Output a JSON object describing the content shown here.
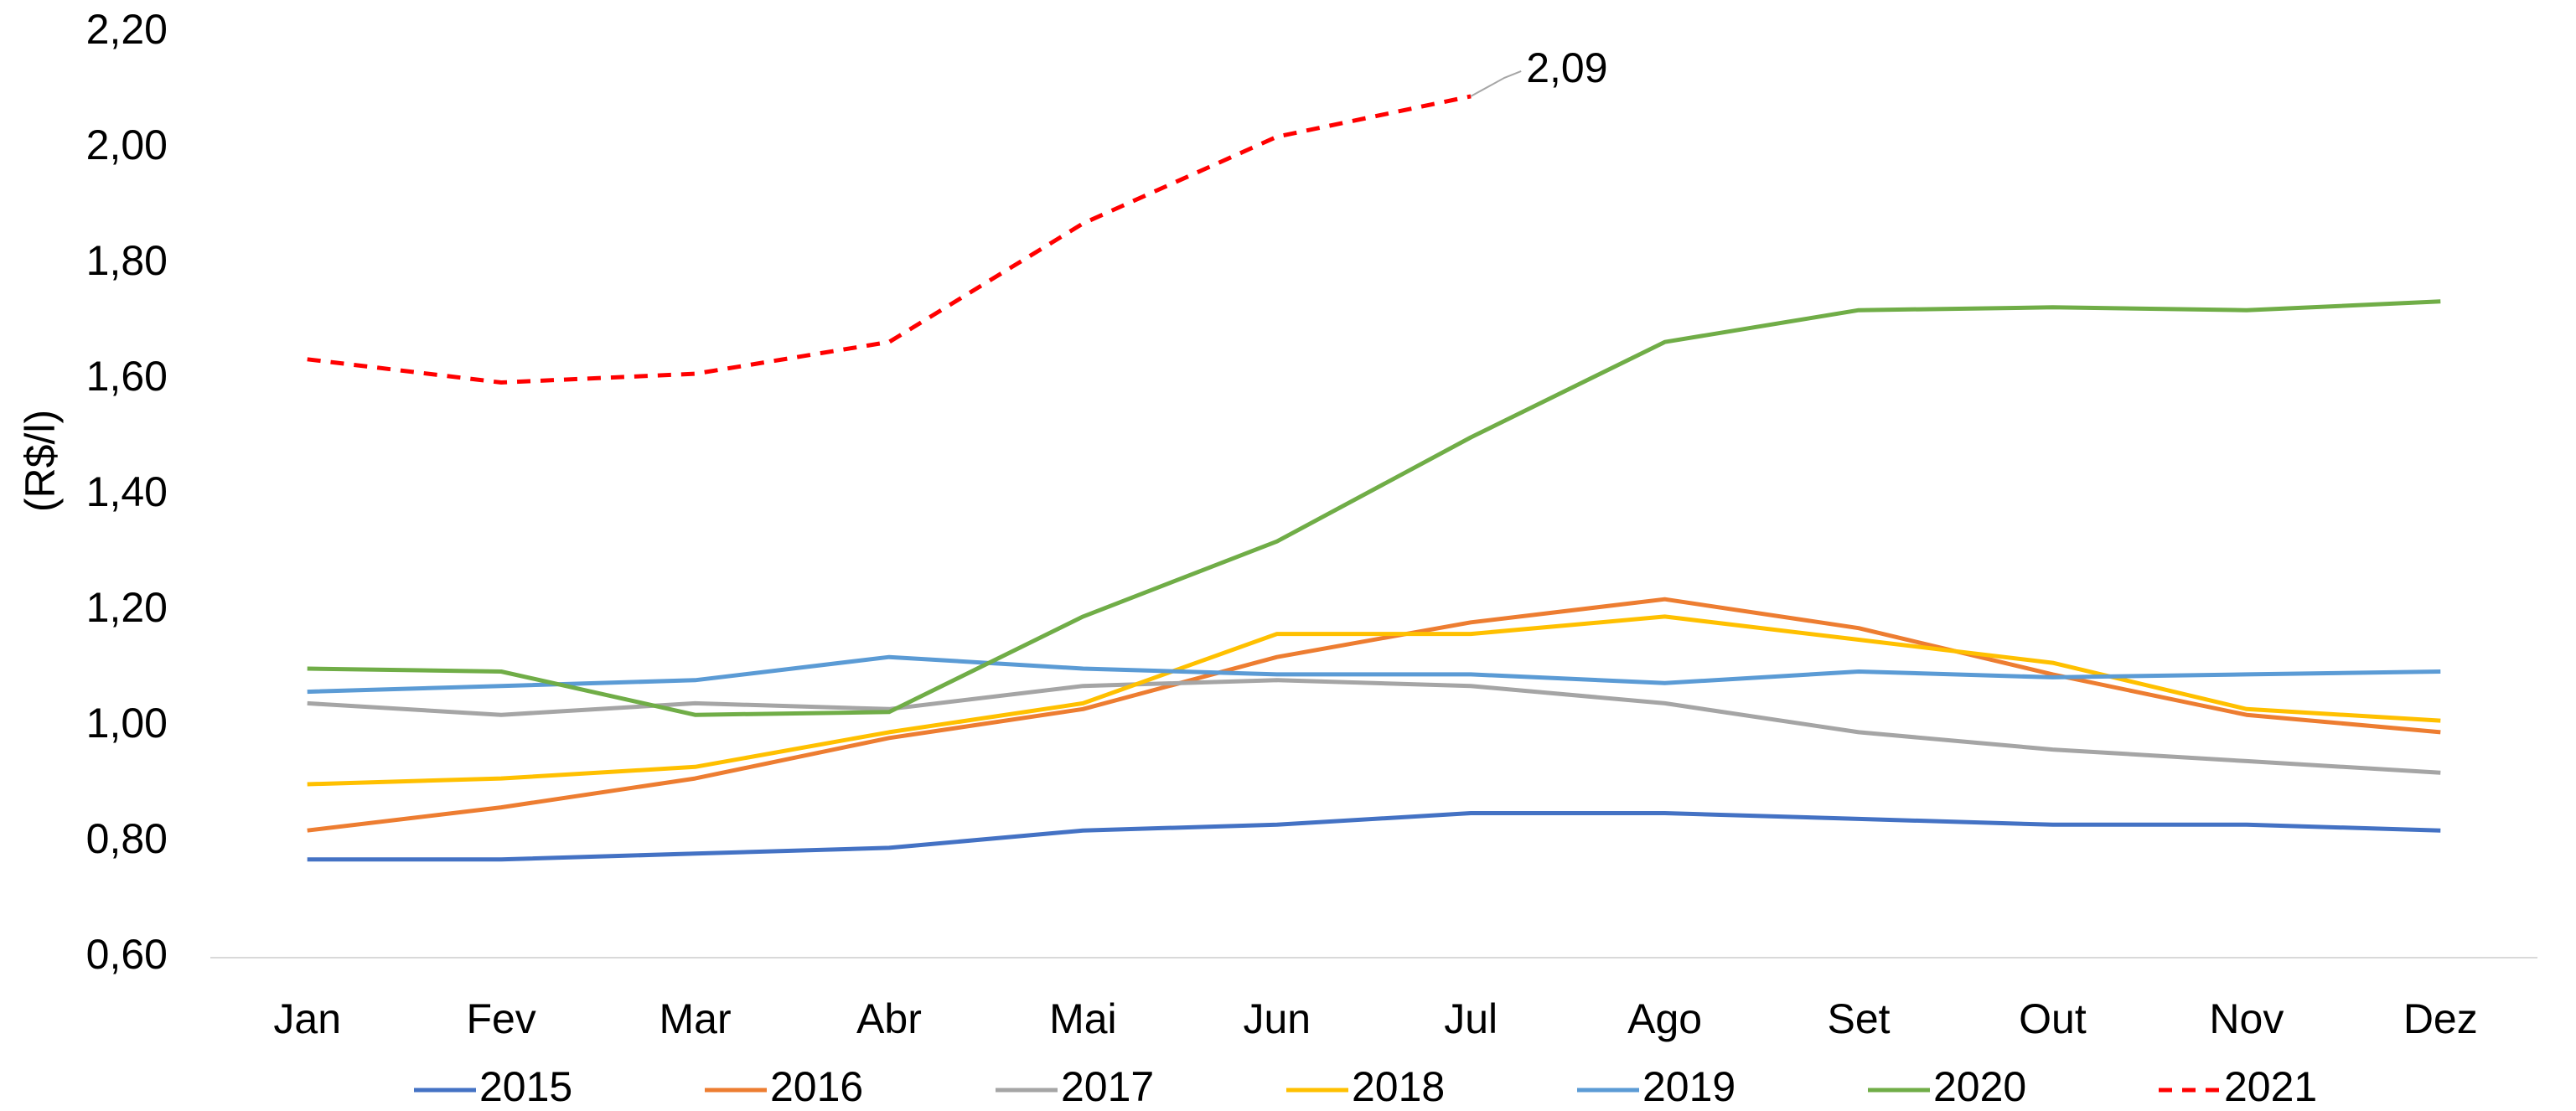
{
  "chart_data": {
    "type": "line",
    "y_label": "(R$/l)",
    "categories": [
      "Jan",
      "Fev",
      "Mar",
      "Abr",
      "Mai",
      "Jun",
      "Jul",
      "Ago",
      "Set",
      "Out",
      "Nov",
      "Dez"
    ],
    "series": [
      {
        "name": "2015",
        "color": "#4472c4",
        "values": [
          0.77,
          0.77,
          0.78,
          0.79,
          0.82,
          0.83,
          0.85,
          0.85,
          0.84,
          0.83,
          0.83,
          0.82
        ]
      },
      {
        "name": "2016",
        "color": "#ed7d31",
        "values": [
          0.82,
          0.86,
          0.91,
          0.98,
          1.03,
          1.12,
          1.18,
          1.22,
          1.17,
          1.09,
          1.02,
          0.99
        ]
      },
      {
        "name": "2017",
        "color": "#a5a5a5",
        "values": [
          1.04,
          1.02,
          1.04,
          1.03,
          1.07,
          1.08,
          1.07,
          1.04,
          0.99,
          0.96,
          0.94,
          0.92
        ]
      },
      {
        "name": "2018",
        "color": "#ffc000",
        "values": [
          0.9,
          0.91,
          0.93,
          0.99,
          1.04,
          1.16,
          1.16,
          1.19,
          1.15,
          1.11,
          1.03,
          1.01
        ]
      },
      {
        "name": "2019",
        "color": "#5b9bd5",
        "values": [
          1.06,
          1.07,
          1.08,
          1.12,
          1.1,
          1.09,
          1.09,
          1.075,
          1.095,
          1.085,
          1.09,
          1.095
        ]
      },
      {
        "name": "2020",
        "color": "#70ad47",
        "values": [
          1.1,
          1.095,
          1.02,
          1.025,
          1.19,
          1.32,
          1.5,
          1.665,
          1.72,
          1.725,
          1.72,
          1.735
        ]
      },
      {
        "name": "2021",
        "color": "#ff0000",
        "dashed": true,
        "values": [
          1.635,
          1.595,
          1.61,
          1.665,
          1.87,
          2.02,
          2.09,
          null,
          null,
          null,
          null,
          null
        ],
        "value_labels": [
          null,
          null,
          null,
          null,
          null,
          null,
          "2,09",
          null,
          null,
          null,
          null,
          null
        ]
      }
    ],
    "ylim": [
      0.6,
      2.2
    ],
    "yticks": [
      {
        "value": 0.6,
        "label": "0,60"
      },
      {
        "value": 0.8,
        "label": "0,80"
      },
      {
        "value": 1.0,
        "label": "1,00"
      },
      {
        "value": 1.2,
        "label": "1,20"
      },
      {
        "value": 1.4,
        "label": "1,40"
      },
      {
        "value": 1.6,
        "label": "1,60"
      },
      {
        "value": 1.8,
        "label": "1,80"
      },
      {
        "value": 2.0,
        "label": "2,00"
      },
      {
        "value": 2.2,
        "label": "2,20"
      }
    ],
    "grid": false,
    "legend": "bottom"
  }
}
